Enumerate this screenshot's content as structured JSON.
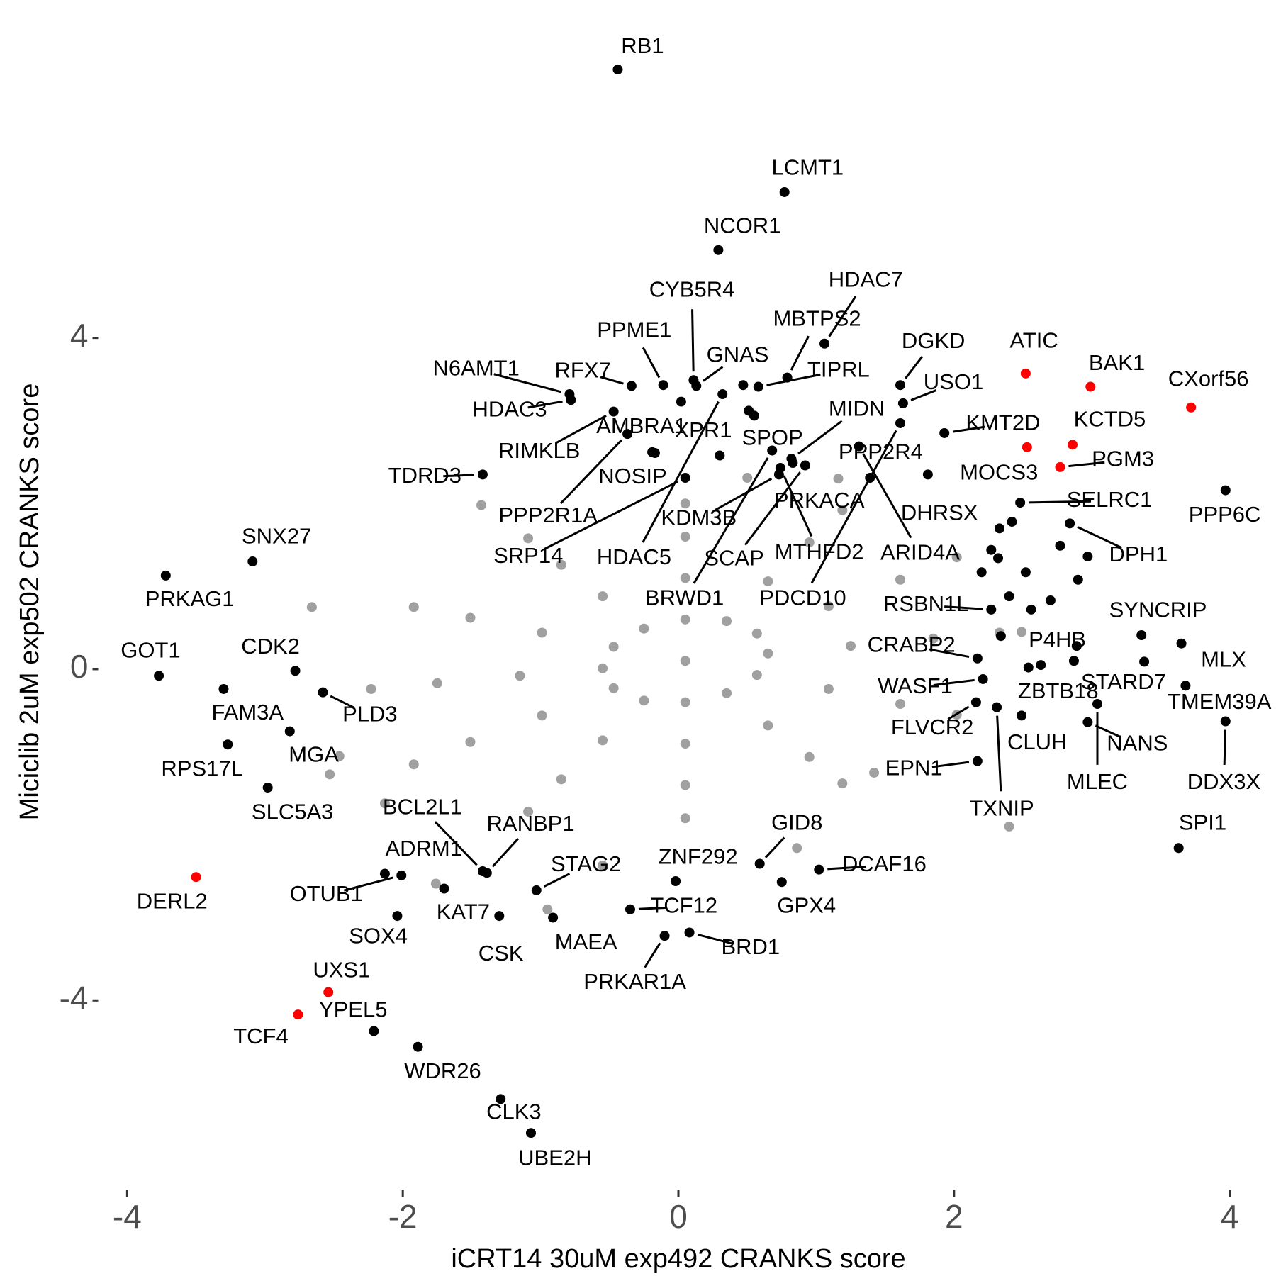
{
  "chart_data": {
    "type": "scatter",
    "xlabel": "iCRT14 30uM exp492 CRANKS score",
    "ylabel": "Miciclib 2uM exp502 CRANKS score",
    "xlim": [
      -4.2,
      4.2
    ],
    "ylim": [
      -6.3,
      7.6
    ],
    "xticks": [
      -4,
      -2,
      0,
      2,
      4
    ],
    "yticks": [
      -4,
      0,
      4
    ],
    "grid": false,
    "series": [
      {
        "color": "#a0a0a0",
        "x": [
          0.05,
          0.65,
          0.57,
          0.35,
          0.05,
          -0.25,
          -0.47,
          -0.55,
          -0.47,
          -0.25,
          0.05,
          0.35,
          0.57,
          1.25,
          1.09,
          0.65,
          0.05,
          -0.55,
          -0.99,
          -1.15,
          -0.99,
          -0.55,
          0.05,
          0.65,
          1.09,
          1.85,
          1.61,
          0.95,
          0.05,
          -0.85,
          -1.51,
          -1.75,
          -1.51,
          -0.85,
          0.05,
          0.95,
          1.61,
          2.33,
          2.02,
          1.19,
          0.05,
          -1.09,
          -1.92,
          -2.23,
          -1.92,
          -1.09,
          0.05,
          1.19,
          2.02,
          -2.66,
          -2.46,
          -2.53,
          -2.13,
          -1.43,
          2.49,
          2.4,
          1.42,
          0.5,
          1.16,
          -1.76,
          -0.95,
          0.86,
          -0.55
        ],
        "values": [
          0.1,
          0.19,
          0.43,
          0.58,
          0.6,
          0.49,
          0.27,
          0.01,
          -0.23,
          -0.38,
          -0.4,
          -0.29,
          -0.07,
          0.28,
          0.76,
          1.06,
          1.1,
          0.88,
          0.44,
          -0.08,
          -0.56,
          -0.86,
          -0.9,
          -0.68,
          -0.24,
          0.37,
          1.08,
          1.53,
          1.6,
          1.26,
          0.62,
          -0.17,
          -0.88,
          -1.33,
          -1.4,
          -1.06,
          -0.42,
          0.44,
          1.35,
          1.92,
          2.0,
          1.58,
          0.75,
          -0.24,
          -1.15,
          -1.72,
          -1.8,
          -1.38,
          -0.55,
          0.75,
          -1.05,
          -1.27,
          -1.62,
          1.98,
          0.45,
          -1.9,
          -1.25,
          2.31,
          2.3,
          -2.59,
          -2.9,
          -2.16,
          -2.37
        ]
      },
      {
        "color": "#000000",
        "labels": [
          "RB1",
          "LCMT1",
          "NCOR1",
          "HDAC7",
          "DGKD",
          "USO1",
          "MBTPS2",
          "TIPRL",
          "CYB5R4",
          "GNAS",
          "PPME1",
          "RFX7",
          "N6AMT1",
          "HDAC3",
          "RIMKLB",
          "AMBRA1",
          "XPR1",
          "SPOP",
          "MIDN",
          "PPP2R4",
          "NOSIP",
          "TDRD3",
          "PPP2R1A",
          "SRP14",
          "KDM3B",
          "PRKACA",
          "HDAC5",
          "SCAP",
          "MTHFD2",
          "DHRSX",
          "ARID4A",
          "BRWD1",
          "PDCD10",
          "KMT2D",
          "SELRC1",
          "PPP6C",
          "DPH1",
          "SYNCRIP",
          "MLX",
          "TMEM39A",
          "STARD7",
          "P4HB",
          "ZBTB18",
          "RSBN1L",
          "CRABP2",
          "WASF1",
          "FLVCR2",
          "CLUH",
          "NANS",
          "MLEC",
          "DDX3X",
          "EPN1",
          "TXNIP",
          "SPI1",
          "SNX27",
          "PRKAG1",
          "GOT1",
          "CDK2",
          "FAM3A",
          "PLD3",
          "MGA",
          "RPS17L",
          "SLC5A3",
          "BCL2L1",
          "RANBP1",
          "ADRM1",
          "STAG2",
          "ZNF292",
          "GID8",
          "DCAF16",
          "GPX4",
          "TCF12",
          "BRD1",
          "PRKAR1A",
          "MAEA",
          "CSK",
          "KAT7",
          "OTUB1",
          "SOX4",
          "YPEL5",
          "WDR26",
          "CLK3",
          "UBE2H",
          null,
          null,
          null,
          null,
          null,
          null,
          null,
          null,
          null,
          null,
          null,
          null,
          null,
          null,
          null,
          null,
          null,
          null
        ],
        "x": [
          -0.44,
          0.77,
          0.29,
          1.06,
          1.61,
          1.63,
          0.79,
          0.58,
          0.11,
          0.13,
          -0.11,
          -0.34,
          -0.79,
          -0.78,
          -0.47,
          -0.19,
          0.3,
          0.55,
          0.82,
          1.39,
          -0.17,
          -1.42,
          -0.37,
          0.05,
          0.73,
          0.83,
          0.32,
          0.92,
          0.74,
          1.81,
          1.31,
          0.68,
          1.61,
          1.93,
          2.48,
          3.97,
          2.84,
          3.36,
          3.65,
          3.68,
          3.38,
          2.87,
          2.63,
          2.27,
          2.17,
          2.21,
          2.16,
          2.49,
          2.97,
          3.04,
          3.97,
          2.17,
          2.31,
          3.63,
          -3.09,
          -3.72,
          -3.77,
          -2.78,
          -3.3,
          -2.58,
          -2.82,
          -3.27,
          -2.98,
          -1.42,
          -1.39,
          -2.13,
          -1.03,
          -0.02,
          0.59,
          1.02,
          0.75,
          -0.35,
          0.08,
          -0.1,
          -0.91,
          -1.3,
          -1.7,
          -2.01,
          -2.04,
          -2.21,
          -1.89,
          -1.29,
          -1.07,
          2.33,
          2.42,
          2.27,
          2.2,
          2.32,
          2.52,
          2.4,
          2.56,
          2.7,
          2.9,
          2.77,
          2.97,
          2.54,
          2.89,
          2.34,
          0.51,
          0.02,
          0.47
        ],
        "values": [
          7.24,
          5.76,
          5.06,
          3.93,
          3.43,
          3.21,
          3.52,
          3.41,
          3.49,
          3.42,
          3.43,
          3.42,
          3.32,
          3.25,
          3.11,
          2.62,
          2.58,
          3.06,
          2.54,
          2.31,
          2.61,
          2.35,
          2.84,
          2.31,
          2.35,
          2.49,
          3.32,
          2.46,
          2.43,
          2.35,
          2.69,
          2.64,
          2.97,
          2.85,
          2.01,
          2.16,
          1.76,
          0.41,
          0.31,
          -0.2,
          0.09,
          0.1,
          0.05,
          0.72,
          0.13,
          -0.12,
          -0.4,
          -0.56,
          -0.64,
          -0.42,
          -0.63,
          -1.11,
          -0.46,
          -2.16,
          1.3,
          1.13,
          -0.08,
          -0.02,
          -0.24,
          -0.28,
          -0.75,
          -0.91,
          -1.43,
          -2.44,
          -2.46,
          -2.47,
          -2.67,
          -2.56,
          -2.35,
          -2.42,
          -2.57,
          -2.9,
          -3.18,
          -3.22,
          -3.0,
          -2.98,
          -2.65,
          -2.49,
          -2.98,
          -4.37,
          -4.56,
          -5.19,
          -5.6,
          1.7,
          1.78,
          1.44,
          1.17,
          1.34,
          1.17,
          0.88,
          0.72,
          0.83,
          1.08,
          1.49,
          1.36,
          0.02,
          0.28,
          0.4,
          3.12,
          3.23,
          3.43
        ]
      },
      {
        "color": "#ff0000",
        "labels": [
          "ATIC",
          "BAK1",
          "CXorf56",
          "MOCS3",
          "KCTD5",
          "PGM3",
          "DERL2",
          "UXS1",
          "TCF4"
        ],
        "x": [
          2.52,
          2.99,
          3.72,
          2.53,
          2.86,
          2.77,
          -3.5,
          -2.54,
          -2.76
        ],
        "values": [
          3.57,
          3.41,
          3.16,
          2.68,
          2.71,
          2.44,
          -2.51,
          -3.9,
          -4.17
        ]
      }
    ]
  }
}
